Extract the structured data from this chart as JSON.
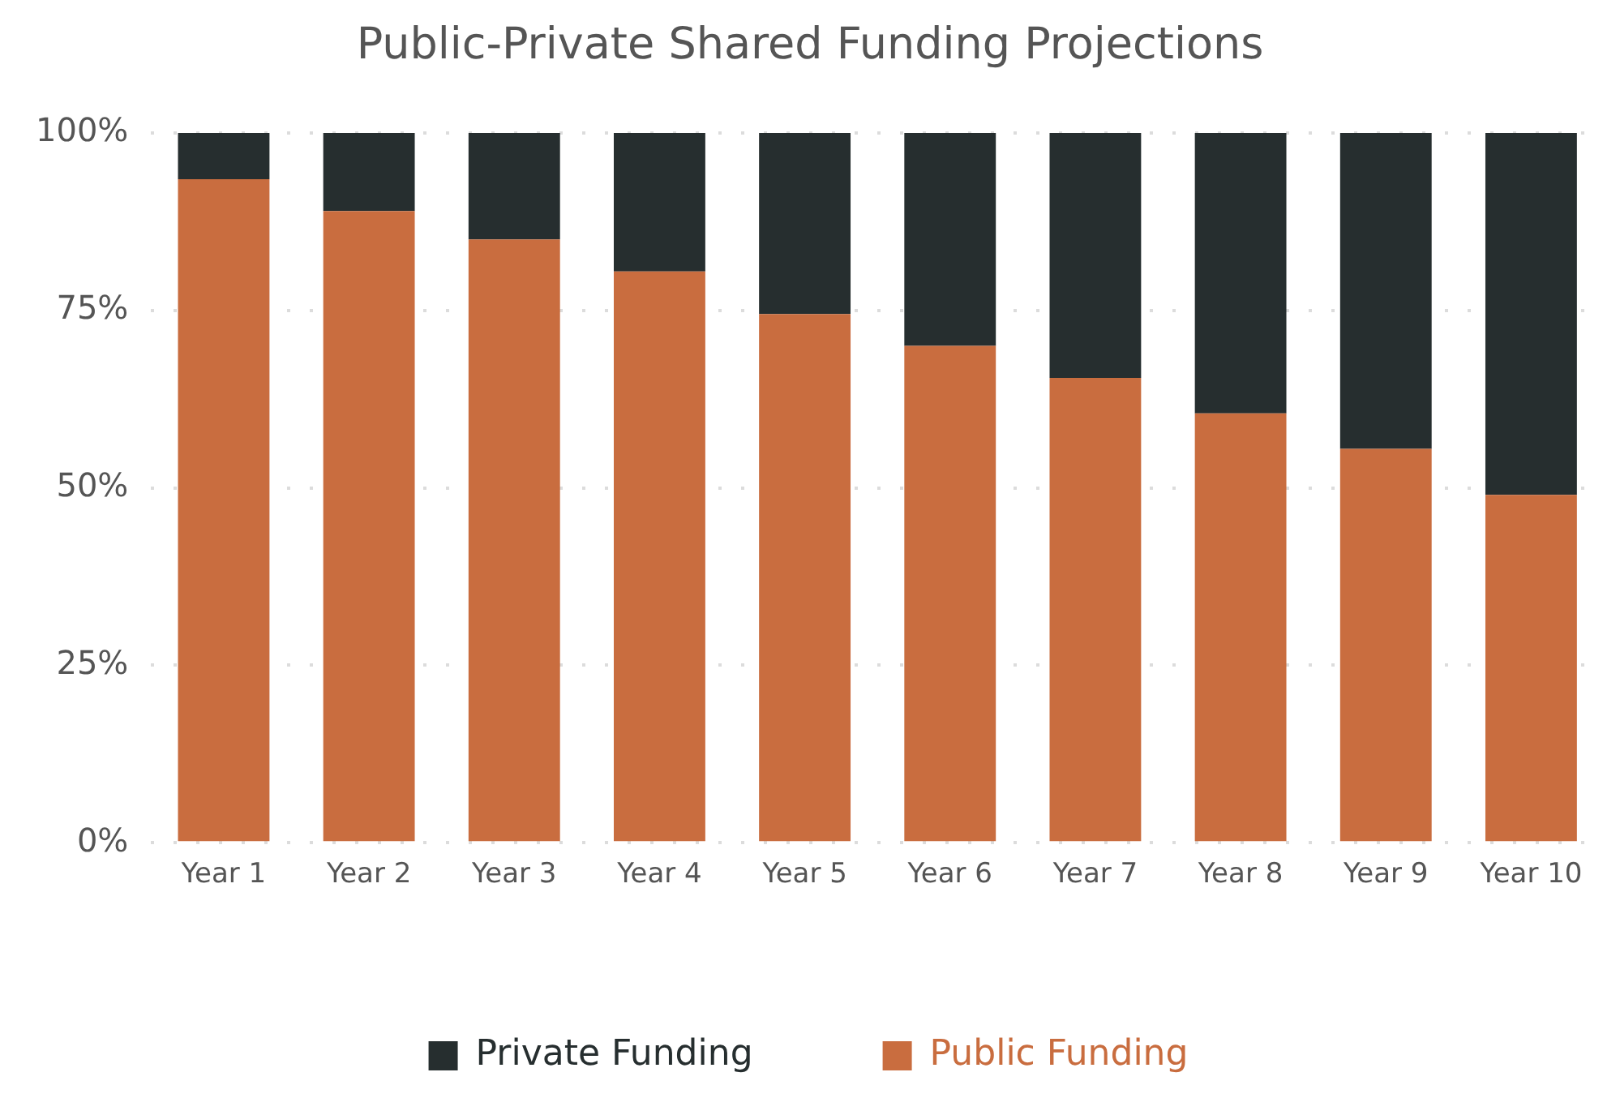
{
  "chart_data": {
    "type": "bar",
    "title": "Public-Private Shared Funding Projections",
    "stacked": true,
    "categories": [
      "Year 1",
      "Year 2",
      "Year 3",
      "Year 4",
      "Year 5",
      "Year 6",
      "Year 7",
      "Year 8",
      "Year 9",
      "Year 10"
    ],
    "series": [
      {
        "name": "Public Funding",
        "color": "#c96d3f",
        "values": [
          93.5,
          89,
          85,
          80.5,
          74.5,
          70,
          65.5,
          60.5,
          55.5,
          49
        ]
      },
      {
        "name": "Private Funding",
        "color": "#262e2f",
        "values": [
          6.5,
          11,
          15,
          19.5,
          25.5,
          30,
          34.5,
          39.5,
          44.5,
          51
        ]
      }
    ],
    "ylim": [
      0,
      100
    ],
    "yticks": [
      {
        "value": 0,
        "label": "0%"
      },
      {
        "value": 25,
        "label": "25%"
      },
      {
        "value": 50,
        "label": "50%"
      },
      {
        "value": 75,
        "label": "75%"
      },
      {
        "value": 100,
        "label": "100%"
      }
    ],
    "grid": "y",
    "legend": "bottom"
  }
}
